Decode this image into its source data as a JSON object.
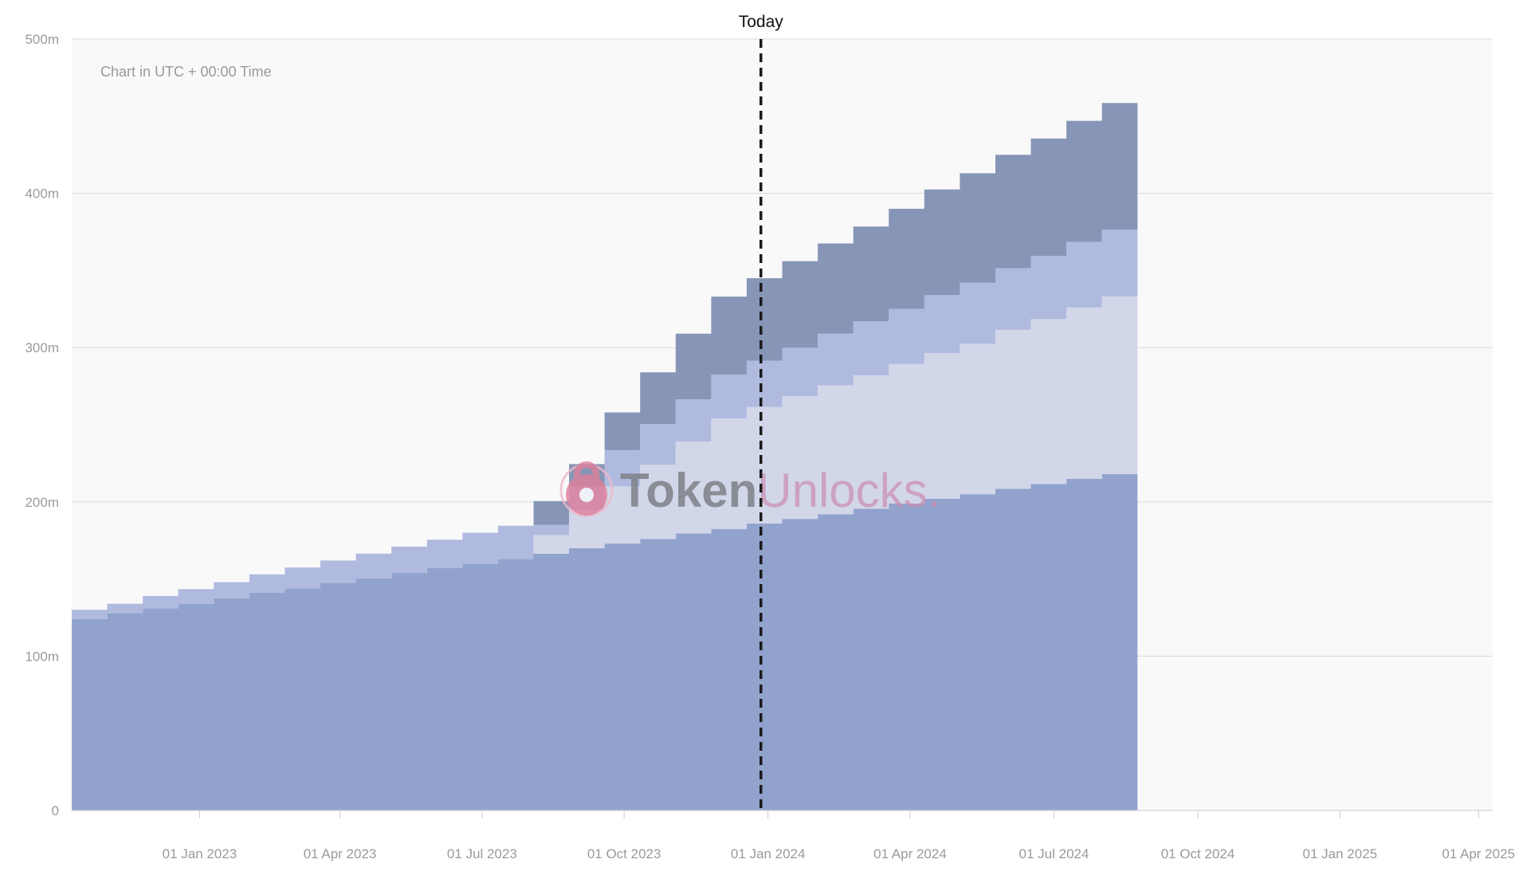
{
  "chart_data": {
    "type": "area",
    "step": true,
    "stacked": true,
    "note": "Chart in UTC + 00:00 Time",
    "today_label": "Today",
    "today_x": 19.4,
    "ylim": [
      0,
      500
    ],
    "yticks": [
      {
        "value": 0,
        "label": "0"
      },
      {
        "value": 100,
        "label": "100m"
      },
      {
        "value": 200,
        "label": "200m"
      },
      {
        "value": 300,
        "label": "300m"
      },
      {
        "value": 400,
        "label": "400m"
      },
      {
        "value": 500,
        "label": "500m"
      }
    ],
    "xlim": [
      0,
      40
    ],
    "xticks": [
      {
        "value": 3.6,
        "label": "01 Jan 2023"
      },
      {
        "value": 7.55,
        "label": "01 Apr 2023"
      },
      {
        "value": 11.55,
        "label": "01 Jul 2023"
      },
      {
        "value": 15.55,
        "label": "01 Oct 2023"
      },
      {
        "value": 19.6,
        "label": "01 Jan 2024"
      },
      {
        "value": 23.6,
        "label": "01 Apr 2024"
      },
      {
        "value": 27.65,
        "label": "01 Jul 2024"
      },
      {
        "value": 31.7,
        "label": "01 Oct 2024"
      },
      {
        "value": 35.7,
        "label": "01 Jan 2025"
      },
      {
        "value": 39.6,
        "label": "01 Apr 2025"
      }
    ],
    "grid": true,
    "legend": "none",
    "colors": [
      "#91a3cd",
      "#d2d6e9",
      "#b0badf",
      "#8795b7"
    ],
    "series": [
      {
        "values": [
          124,
          128,
          131,
          134,
          137.5,
          141,
          144,
          147.5,
          150.5,
          154,
          157,
          160,
          163,
          166.5,
          170,
          173,
          176,
          179.5,
          182.5,
          186,
          189,
          192,
          195.5,
          199,
          202,
          205,
          208.5,
          211.5,
          215,
          218
        ]
      },
      {
        "values": [
          0,
          0,
          0,
          0,
          0,
          0,
          0,
          0,
          0,
          0,
          0,
          0,
          0,
          12,
          25,
          37,
          48,
          59.5,
          71.5,
          75.5,
          79.5,
          83.5,
          86.5,
          90.5,
          94.5,
          97.5,
          103,
          107,
          111,
          115
        ]
      },
      {
        "values": [
          6,
          6,
          8,
          9.5,
          10.5,
          12,
          13.5,
          14.5,
          16,
          17,
          18.5,
          20,
          21.5,
          6.5,
          15,
          23.5,
          26.5,
          27.5,
          28.5,
          30,
          31.5,
          33.5,
          35,
          35.5,
          37.5,
          39.5,
          40,
          41,
          42.5,
          43.5
        ]
      },
      {
        "values": [
          0,
          0,
          0,
          0,
          0,
          0,
          0,
          0,
          0,
          0,
          0,
          0,
          0,
          15.5,
          14.5,
          24.5,
          33.5,
          42.5,
          50.5,
          53.5,
          56,
          58.5,
          61.5,
          65,
          68.5,
          71,
          73.5,
          76,
          78.5,
          82
        ]
      }
    ]
  },
  "watermark": {
    "brand_part1": "Token",
    "brand_part2": "Unlocks.",
    "icon": "padlock-icon"
  }
}
